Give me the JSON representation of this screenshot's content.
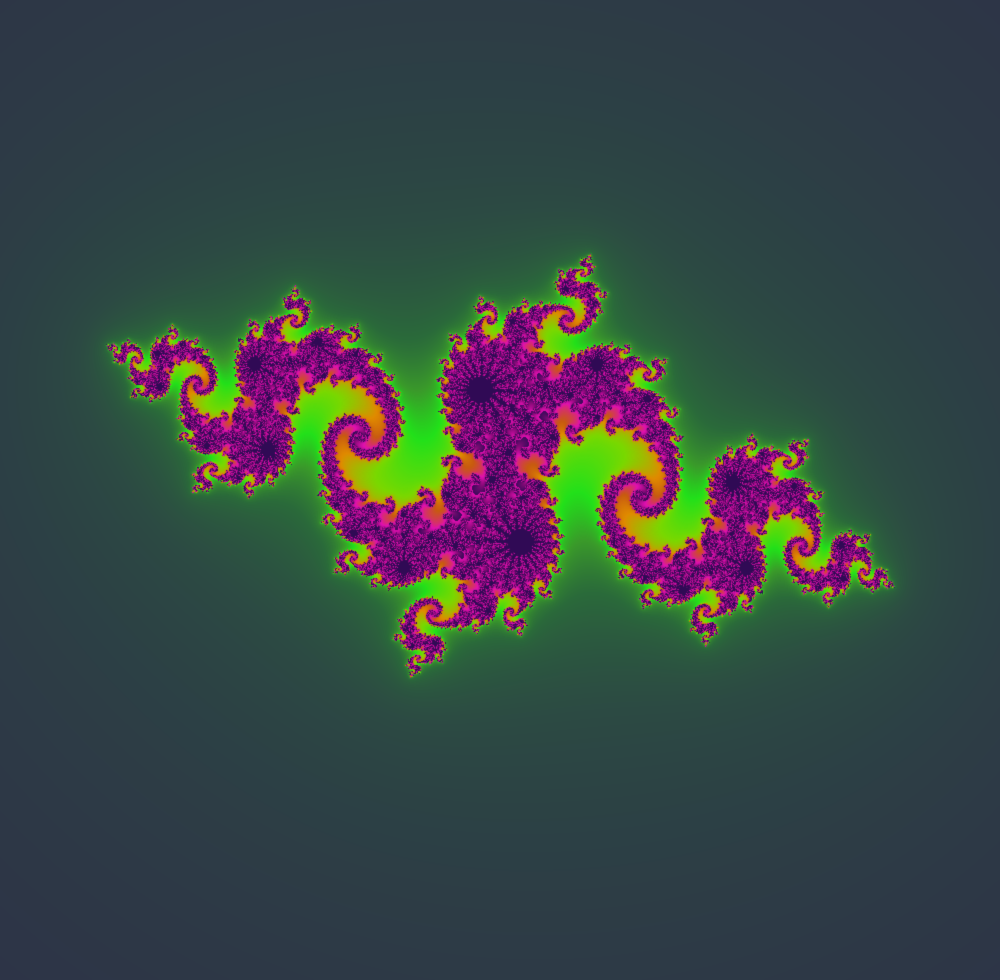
{
  "image": {
    "subject": "julia-set-fractal",
    "julia_constant": {
      "re": -0.8,
      "im": 0.156
    },
    "view": {
      "center_re": 0.0,
      "center_im": 0.0,
      "zoom": 1.0
    },
    "max_iterations": 220,
    "rotation_deg": -20
  },
  "colors": {
    "background": "#2e1d47",
    "interior": "#300a55",
    "outer_glow_1": "#2d3347",
    "outer_glow_2": "#2c4a43",
    "outer_glow_3": "#2a6a3a",
    "inner_glow": "#3a9a2a",
    "bright_green": "#22e01a",
    "lime": "#7ad800",
    "orange": "#e08a00",
    "amber": "#c85a10",
    "magenta": "#e010b0",
    "deep_magenta": "#8a0a7a",
    "dark_purple": "#3a0a5a"
  }
}
